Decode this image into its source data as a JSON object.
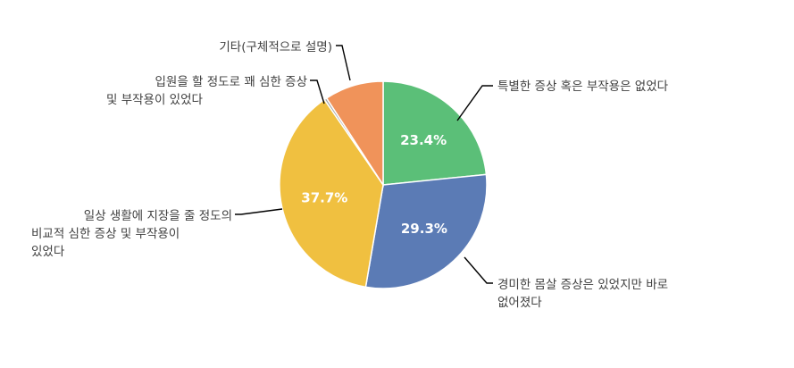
{
  "chart_data": {
    "type": "pie",
    "start_angle_deg": 0,
    "direction": "clockwise",
    "slices": [
      {
        "label": "특별한 증상 혹은 부작용은 없었다",
        "value": 23.4,
        "value_label": "23.4%",
        "color": "#5bbf78"
      },
      {
        "label": "경미한 몸살 증상은 있었지만 바로 없어졌다",
        "value": 29.3,
        "value_label": "29.3%",
        "color": "#5b7bb5"
      },
      {
        "label": "일상 생활에 지장을 줄 정도의 비교적 심한 증상 및 부작용이 있었다",
        "value": 37.7,
        "value_label": "37.7%",
        "color": "#f0c040"
      },
      {
        "label": "입원을 할 정도로 꽤 심한 증상 및 부작용이 있었다",
        "value": 0.4,
        "value_label": "",
        "color": "#a5a5a5"
      },
      {
        "label": "기타(구체적으로 설명)",
        "value": 9.2,
        "value_label": "",
        "color": "#f0935a"
      }
    ]
  },
  "labels": {
    "slice0_line1": "특별한 증상 혹은 부작용은 없었다",
    "slice1_line1": "경미한 몸살 증상은 있었지만 바로",
    "slice1_line2": "없어졌다",
    "slice2_line1": "일상 생활에 지장을 줄 정도의",
    "slice2_line2": "비교적 심한 증상 및 부작용이",
    "slice2_line3": "있었다",
    "slice3_line1": "입원을 할 정도로 꽤 심한 증상",
    "slice3_line2": "및 부작용이 있었다",
    "slice4_line1": "기타(구체적으로 설명)"
  }
}
